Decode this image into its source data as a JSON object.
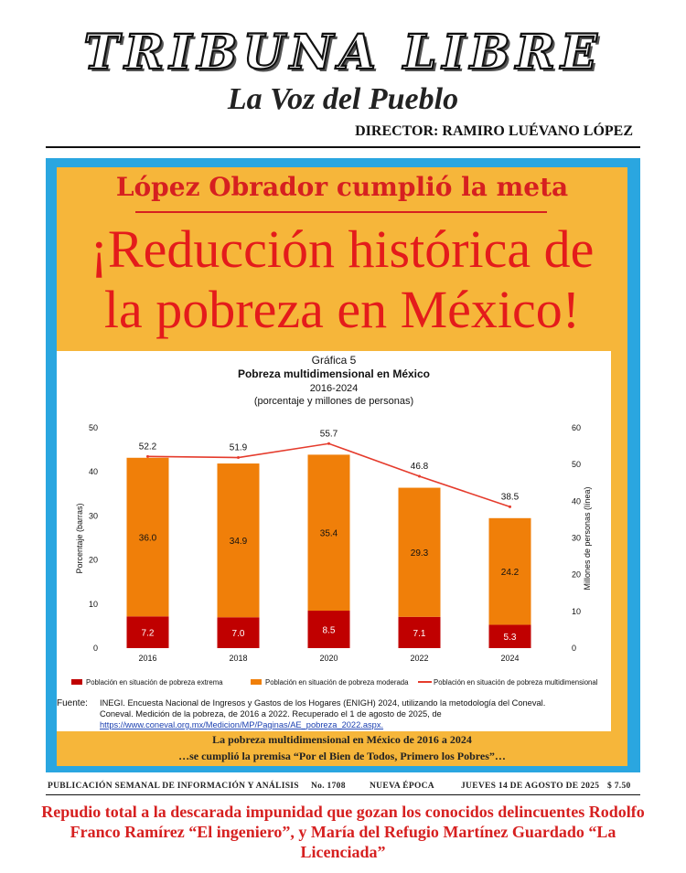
{
  "masthead": {
    "title": "TRIBUNA LIBRE",
    "subtitle": "La Voz del Pueblo",
    "director": "DIRECTOR: RAMIRO LUÉVANO LÓPEZ"
  },
  "cover": {
    "kicker": "López Obrador cumplió la meta",
    "headline_line1": "¡Reducción histórica de",
    "headline_line2": "la pobreza en México!",
    "caption_line1": "La pobreza multidimensional en México de 2016 a 2024",
    "caption_line2": "…se cumplió la premisa “Por el Bien de Todos, Primero los Pobres”…"
  },
  "colors": {
    "frame_blue": "#2aa6e0",
    "panel_orange": "#f6b63a",
    "headline_red": "#e41b1b",
    "bar_extreme": "#c00000",
    "bar_moderate": "#f07f09",
    "line_total": "#e53b2c"
  },
  "chart_data": {
    "type": "bar",
    "label": "Gráfica 5",
    "title": "Pobreza multidimensional en México",
    "subtitle_years": "2016-2024",
    "subtitle_units": "(porcentaje y millones de personas)",
    "categories": [
      "2016",
      "2018",
      "2020",
      "2022",
      "2024"
    ],
    "stacked": true,
    "series": [
      {
        "name": "Población en situación de pobreza extrema",
        "type": "bar",
        "axis": "left",
        "values": [
          7.2,
          7.0,
          8.5,
          7.1,
          5.3
        ]
      },
      {
        "name": "Población en situación de pobreza moderada",
        "type": "bar",
        "axis": "left",
        "values": [
          36.0,
          34.9,
          35.4,
          29.3,
          24.2
        ]
      },
      {
        "name": "Población en situación de pobreza multidimensional",
        "type": "line",
        "axis": "right",
        "values": [
          52.2,
          51.9,
          55.7,
          46.8,
          38.5
        ]
      }
    ],
    "ylabel": "Porcentaje (barras)",
    "y2label": "Millones de personas (línea)",
    "ylim": [
      0,
      50
    ],
    "y2lim": [
      0,
      60
    ],
    "yticks": [
      "0",
      "10",
      "20",
      "30",
      "40",
      "50"
    ],
    "y2ticks": [
      "0",
      "10",
      "20",
      "30",
      "40",
      "50",
      "60"
    ],
    "legend_position": "bottom",
    "grid": false,
    "source_label": "Fuente:",
    "source_line1": "INEGI. Encuesta Nacional de Ingresos y Gastos de los Hogares (ENIGH) 2024, utilizando la metodología del Coneval.",
    "source_line2": "Coneval. Medición de la pobreza, de 2016 a 2022. Recuperado el 1 de agosto de 2025, de",
    "source_url": "https://www.coneval.org.mx/Medicion/MP/Paginas/AE_pobreza_2022.aspx."
  },
  "infobar": {
    "publication": "PUBLICACIÓN SEMANAL DE INFORMACIÓN Y ANÁLISIS",
    "number": "No. 1708",
    "epoch": "NUEVA ÉPOCA",
    "date": "JUEVES 14 DE AGOSTO DE 2025",
    "price": "$ 7.50"
  },
  "footer": {
    "headline_line1": "Repudio total a la descarada impunidad que gozan los conocidos delincuentes Rodolfo",
    "headline_line2": "Franco Ramírez “El ingeniero”, y María del Refugio Martínez Guardado “La Licenciada”"
  }
}
